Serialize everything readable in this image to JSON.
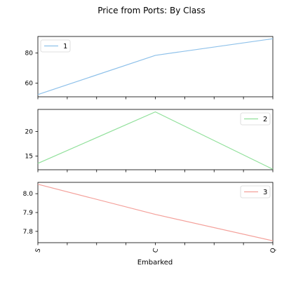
{
  "chart_data": {
    "type": "line",
    "title": "Price from Ports: By Class",
    "xlabel": "Embarked",
    "categories": [
      "S",
      "C",
      "Q"
    ],
    "panels": [
      {
        "series": [
          {
            "name": "1",
            "values": [
              52.5,
              78.5,
              89.5
            ],
            "color": "#8ec1ea"
          }
        ],
        "ylim": [
          51,
          91
        ],
        "yticks": [
          60,
          80
        ],
        "legend": "top-left"
      },
      {
        "series": [
          {
            "name": "2",
            "values": [
              13.5,
              24.0,
              12.3
            ],
            "color": "#90e09a"
          }
        ],
        "ylim": [
          12.2,
          24.5
        ],
        "yticks": [
          15,
          20
        ],
        "legend": "top-right"
      },
      {
        "series": [
          {
            "name": "3",
            "values": [
              8.05,
              7.89,
              7.75
            ],
            "color": "#f4a09a"
          }
        ],
        "ylim": [
          7.74,
          8.06
        ],
        "yticks": [
          7.8,
          7.9,
          8.0
        ],
        "legend": "top-right"
      }
    ]
  }
}
